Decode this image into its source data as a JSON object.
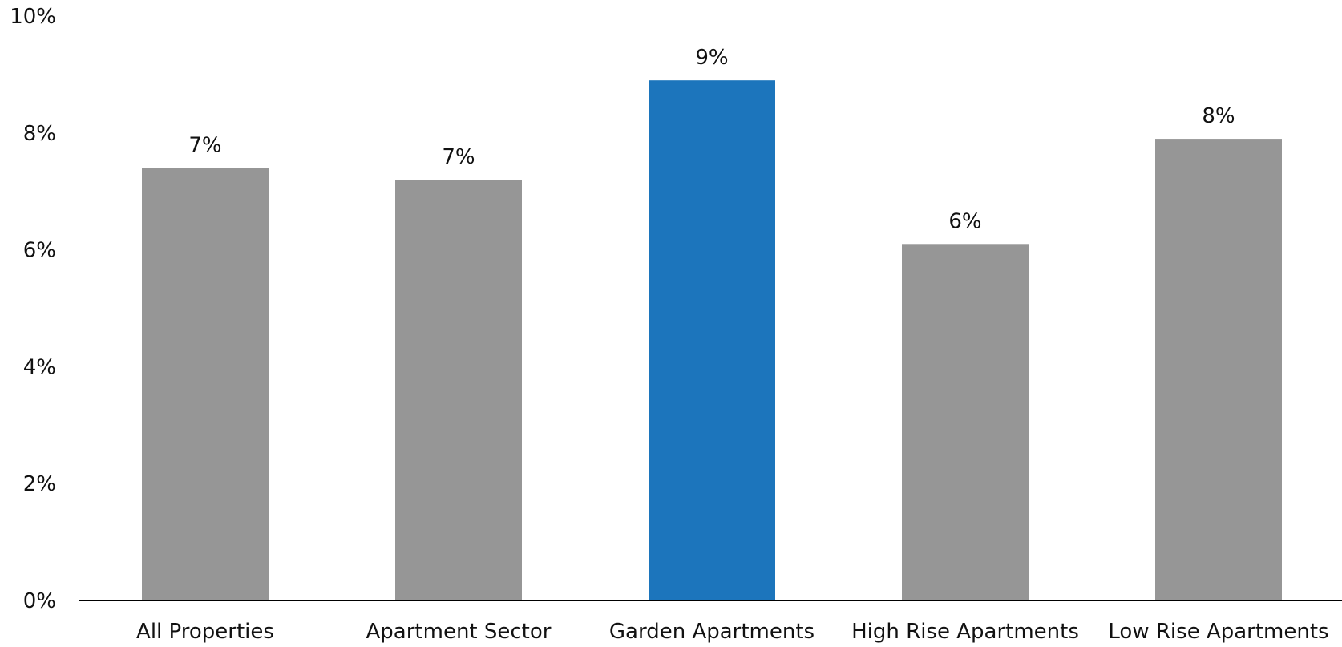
{
  "chart_data": {
    "type": "bar",
    "title": "",
    "xlabel": "",
    "ylabel": "",
    "categories": [
      "All Properties",
      "Apartment Sector",
      "Garden Apartments",
      "High Rise Apartments",
      "Low Rise Apartments"
    ],
    "values": [
      7.4,
      7.2,
      8.9,
      6.1,
      7.9
    ],
    "data_labels": [
      "7%",
      "7%",
      "9%",
      "6%",
      "8%"
    ],
    "ylim": [
      0,
      10
    ],
    "yticks": [
      0,
      2,
      4,
      6,
      8,
      10
    ],
    "ytick_labels": [
      "0%",
      "2%",
      "4%",
      "6%",
      "8%",
      "10%"
    ],
    "grid": false,
    "legend": "none",
    "colors": {
      "default_bar": "#969696",
      "highlight_bar": "#1c75bc",
      "axis": "#000000"
    },
    "highlight_index": 2
  }
}
